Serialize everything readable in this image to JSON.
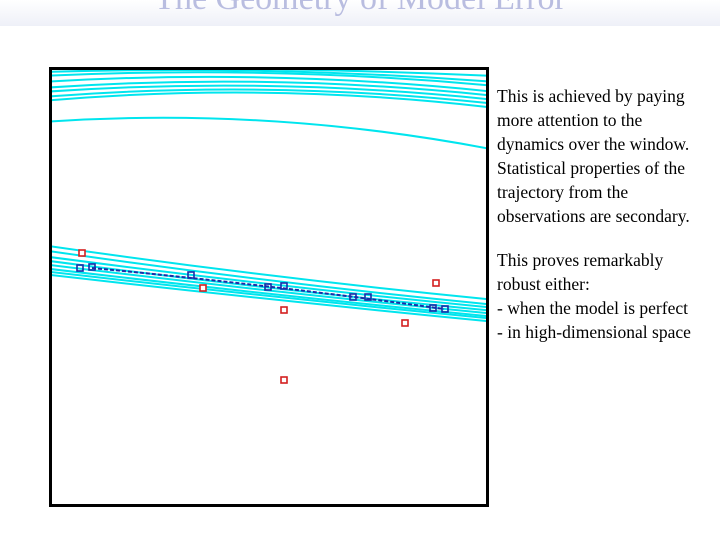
{
  "slide": {
    "title": "The Geometry of Model Error"
  },
  "text": {
    "paragraph_1": [
      "This is achieved by paying",
      "more attention to the",
      "dynamics over the window.",
      "Statistical properties of the",
      "trajectory from the",
      "observations are secondary."
    ],
    "paragraph_2": [
      "This proves remarkably",
      "robust either:",
      "- when the model is perfect",
      "- in high-dimensional space"
    ]
  },
  "colors": {
    "trajectories": "#00e5ee",
    "model_track": "#1a2ca8",
    "observations": "#d42020",
    "frame": "#000000",
    "title": "#b9bde0"
  }
}
